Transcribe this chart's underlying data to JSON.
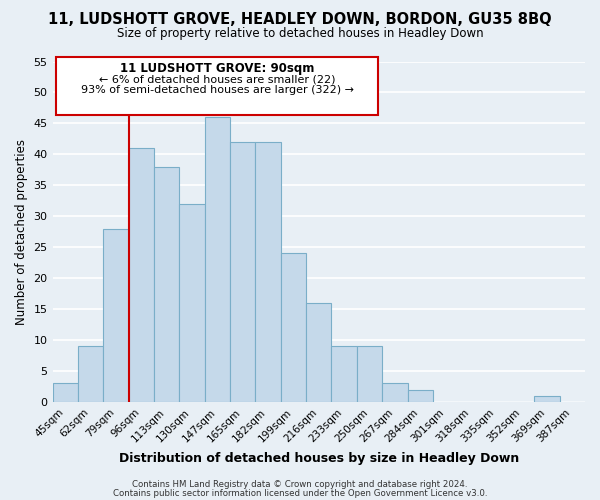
{
  "title": "11, LUDSHOTT GROVE, HEADLEY DOWN, BORDON, GU35 8BQ",
  "subtitle": "Size of property relative to detached houses in Headley Down",
  "xlabel": "Distribution of detached houses by size in Headley Down",
  "ylabel": "Number of detached properties",
  "bin_labels": [
    "45sqm",
    "62sqm",
    "79sqm",
    "96sqm",
    "113sqm",
    "130sqm",
    "147sqm",
    "165sqm",
    "182sqm",
    "199sqm",
    "216sqm",
    "233sqm",
    "250sqm",
    "267sqm",
    "284sqm",
    "301sqm",
    "318sqm",
    "335sqm",
    "352sqm",
    "369sqm",
    "387sqm"
  ],
  "bar_heights": [
    3,
    9,
    28,
    41,
    38,
    32,
    46,
    42,
    42,
    24,
    16,
    9,
    9,
    3,
    2,
    0,
    0,
    0,
    0,
    1,
    0
  ],
  "bar_color": "#c5d9ea",
  "bar_edge_color": "#7aaec8",
  "highlight_line_color": "#cc0000",
  "annotation_title": "11 LUDSHOTT GROVE: 90sqm",
  "annotation_line1": "← 6% of detached houses are smaller (22)",
  "annotation_line2": "93% of semi-detached houses are larger (322) →",
  "annotation_box_edge": "#cc0000",
  "annotation_box_face": "#ffffff",
  "ylim": [
    0,
    55
  ],
  "yticks": [
    0,
    5,
    10,
    15,
    20,
    25,
    30,
    35,
    40,
    45,
    50,
    55
  ],
  "footer1": "Contains HM Land Registry data © Crown copyright and database right 2024.",
  "footer2": "Contains public sector information licensed under the Open Government Licence v3.0.",
  "bg_color": "#e8eff5",
  "grid_color": "#ffffff"
}
